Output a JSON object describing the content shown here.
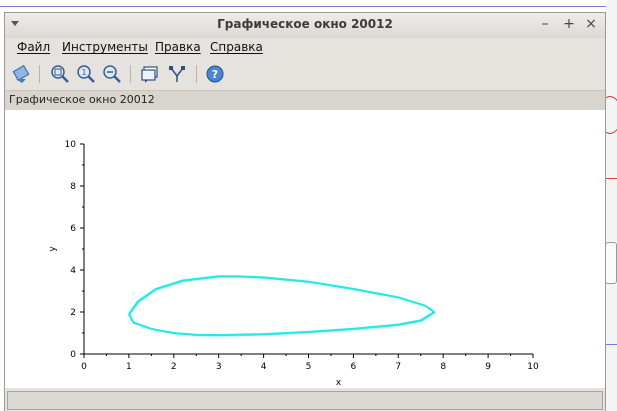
{
  "window": {
    "title": "Графическое окно 20012",
    "controls": {
      "minimize": "–",
      "maximize": "+",
      "close": "×"
    }
  },
  "menu": {
    "items": [
      "Файл",
      "Инструменты",
      "Правка",
      "Справка"
    ]
  },
  "toolbar": {
    "buttons": [
      "rotate-icon",
      "zoom-icon",
      "zoom-in-icon",
      "zoom-out-icon",
      "datatip-icon",
      "editor-icon",
      "help-icon"
    ]
  },
  "figure": {
    "label": "Графическое окно 20012"
  },
  "chart_data": {
    "type": "line",
    "title": "",
    "xlabel": "x",
    "ylabel": "y",
    "xlim": [
      0,
      10
    ],
    "ylim": [
      0,
      10
    ],
    "xticks": [
      "0",
      "1",
      "2",
      "3",
      "4",
      "5",
      "6",
      "7",
      "8",
      "9",
      "10"
    ],
    "yticks": [
      "0",
      "2",
      "4",
      "6",
      "8",
      "10"
    ],
    "grid": false,
    "series": [
      {
        "color": "#22e8e8",
        "x": [
          1.0,
          1.2,
          1.6,
          2.2,
          3.0,
          3.4,
          4.0,
          5.0,
          6.0,
          7.0,
          7.6,
          7.8,
          7.5,
          7.0,
          6.0,
          5.0,
          4.0,
          3.0,
          2.5,
          2.0,
          1.5,
          1.1,
          1.0
        ],
        "y": [
          1.9,
          2.5,
          3.1,
          3.5,
          3.7,
          3.7,
          3.65,
          3.45,
          3.1,
          2.7,
          2.3,
          2.0,
          1.6,
          1.4,
          1.2,
          1.05,
          0.95,
          0.9,
          0.92,
          1.0,
          1.2,
          1.5,
          1.9
        ]
      }
    ]
  }
}
